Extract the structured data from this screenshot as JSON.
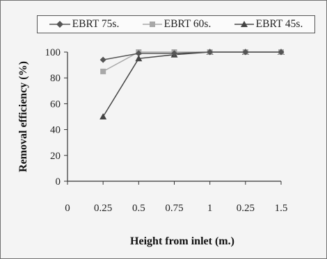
{
  "chart_data": {
    "type": "line",
    "title": "",
    "xlabel": "Height from inlet (m.)",
    "ylabel": "Removal efficiency (%)",
    "x_tick_labels": [
      "0",
      "0.25",
      "0.5",
      "0.75",
      "1",
      "0.25",
      "1.5"
    ],
    "y_ticks": [
      0,
      20,
      40,
      60,
      80,
      100
    ],
    "ylim": [
      0,
      100
    ],
    "grid": false,
    "legend_position": "top",
    "series": [
      {
        "name": "EBRT 75s.",
        "marker": "diamond",
        "color": "#555555",
        "x_index": [
          1,
          2,
          3,
          4,
          5,
          6
        ],
        "values": [
          94,
          99,
          99,
          100,
          100,
          100
        ]
      },
      {
        "name": "EBRT 60s.",
        "marker": "square",
        "color": "#a8a8a8",
        "x_index": [
          1,
          2,
          3,
          4,
          5,
          6
        ],
        "values": [
          85,
          100,
          100,
          100,
          100,
          100
        ]
      },
      {
        "name": "EBRT 45s.",
        "marker": "triangle",
        "color": "#444444",
        "x_index": [
          1,
          2,
          3,
          4,
          5,
          6
        ],
        "values": [
          50,
          95,
          98,
          100,
          100,
          100
        ]
      }
    ]
  }
}
